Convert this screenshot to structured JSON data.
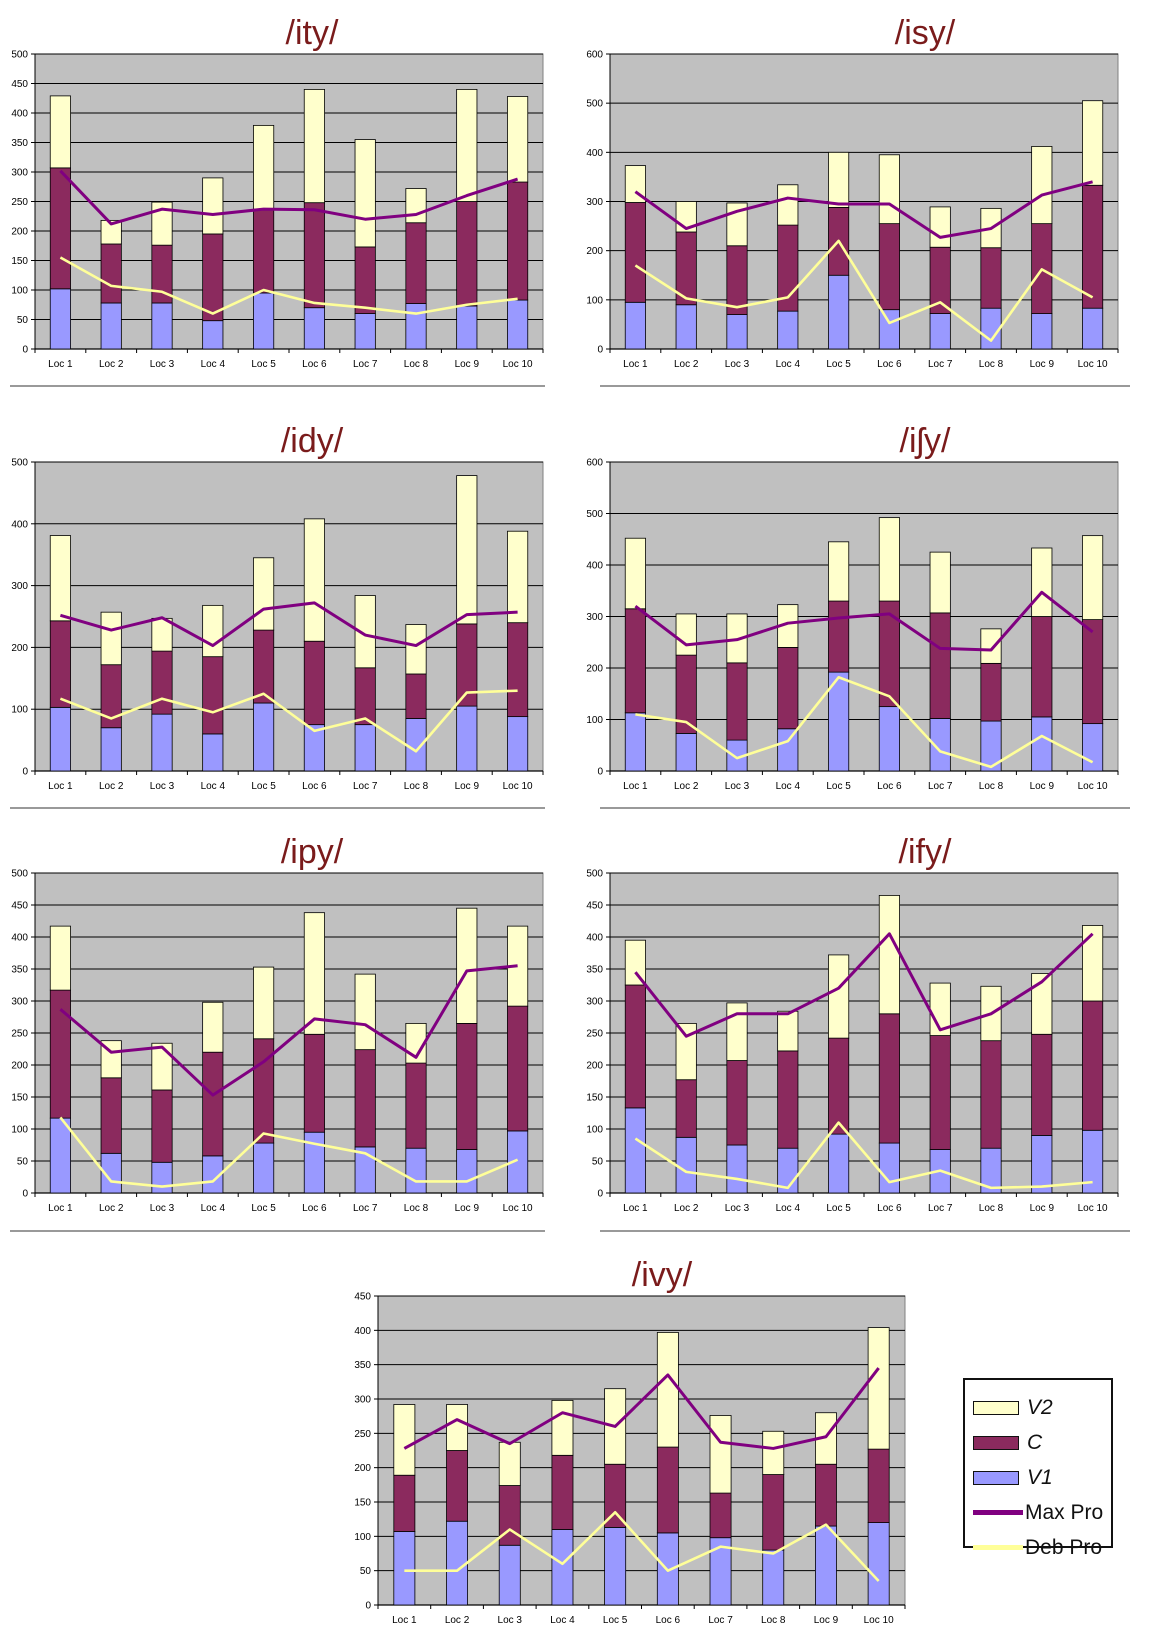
{
  "legend": {
    "v2": "V2",
    "c": "C",
    "v1": "V1",
    "max": "Max Pro",
    "deb": "Deb Pro"
  },
  "colors": {
    "v2": "#ffffcc",
    "c": "#8b2a5e",
    "v1": "#9999ff",
    "max": "#800080",
    "deb": "#ffff99",
    "plot_bg": "#c0c0c0",
    "title": "#7a1b1b"
  },
  "chart_data": [
    {
      "type": "bar",
      "stacked": true,
      "title": "/ity/",
      "categories": [
        "Loc 1",
        "Loc 2",
        "Loc 3",
        "Loc 4",
        "Loc 5",
        "Loc 6",
        "Loc 7",
        "Loc 8",
        "Loc 9",
        "Loc 10"
      ],
      "ylim": [
        0,
        500
      ],
      "yticks": [
        0,
        50,
        100,
        150,
        200,
        250,
        300,
        350,
        400,
        450,
        500
      ],
      "series": [
        {
          "name": "V1",
          "values": [
            102,
            78,
            78,
            48,
            95,
            70,
            60,
            77,
            73,
            83
          ]
        },
        {
          "name": "C",
          "values": [
            205,
            100,
            98,
            147,
            142,
            178,
            113,
            137,
            177,
            200
          ]
        },
        {
          "name": "V2",
          "values": [
            122,
            40,
            73,
            95,
            142,
            192,
            182,
            58,
            190,
            145
          ]
        }
      ],
      "lines": [
        {
          "name": "Max Pro",
          "values": [
            302,
            212,
            237,
            228,
            237,
            236,
            220,
            228,
            260,
            288
          ]
        },
        {
          "name": "Deb Pro",
          "values": [
            155,
            107,
            97,
            60,
            100,
            78,
            70,
            60,
            75,
            85
          ]
        }
      ]
    },
    {
      "type": "bar",
      "stacked": true,
      "title": "/isy/",
      "categories": [
        "Loc 1",
        "Loc 2",
        "Loc 3",
        "Loc 4",
        "Loc 5",
        "Loc 6",
        "Loc 7",
        "Loc 8",
        "Loc 9",
        "Loc 10"
      ],
      "ylim": [
        0,
        600
      ],
      "yticks": [
        0,
        100,
        200,
        300,
        400,
        500,
        600
      ],
      "series": [
        {
          "name": "V1",
          "values": [
            95,
            90,
            70,
            77,
            150,
            80,
            72,
            83,
            72,
            83
          ]
        },
        {
          "name": "C",
          "values": [
            203,
            148,
            140,
            175,
            138,
            175,
            135,
            123,
            183,
            250
          ]
        },
        {
          "name": "V2",
          "values": [
            75,
            62,
            87,
            82,
            112,
            140,
            82,
            80,
            157,
            172
          ]
        }
      ],
      "lines": [
        {
          "name": "Max Pro",
          "values": [
            320,
            245,
            280,
            307,
            295,
            295,
            227,
            245,
            313,
            340
          ]
        },
        {
          "name": "Deb Pro",
          "values": [
            170,
            103,
            85,
            105,
            220,
            53,
            95,
            17,
            162,
            105
          ]
        }
      ]
    },
    {
      "type": "bar",
      "stacked": true,
      "title": "/idy/",
      "categories": [
        "Loc 1",
        "Loc 2",
        "Loc 3",
        "Loc 4",
        "Loc 5",
        "Loc 6",
        "Loc 7",
        "Loc 8",
        "Loc 9",
        "Loc 10"
      ],
      "ylim": [
        0,
        500
      ],
      "yticks": [
        0,
        100,
        200,
        300,
        400,
        500
      ],
      "series": [
        {
          "name": "V1",
          "values": [
            103,
            70,
            92,
            60,
            110,
            75,
            75,
            85,
            105,
            88
          ]
        },
        {
          "name": "C",
          "values": [
            140,
            102,
            102,
            125,
            118,
            135,
            92,
            72,
            133,
            152
          ]
        },
        {
          "name": "V2",
          "values": [
            138,
            85,
            53,
            83,
            117,
            198,
            117,
            80,
            240,
            148
          ]
        }
      ],
      "lines": [
        {
          "name": "Max Pro",
          "values": [
            252,
            228,
            248,
            203,
            262,
            272,
            220,
            203,
            253,
            257
          ]
        },
        {
          "name": "Deb Pro",
          "values": [
            117,
            85,
            117,
            95,
            125,
            65,
            85,
            32,
            127,
            130
          ]
        }
      ]
    },
    {
      "type": "bar",
      "stacked": true,
      "title": "/iʃy/",
      "categories": [
        "Loc 1",
        "Loc 2",
        "Loc 3",
        "Loc 4",
        "Loc 5",
        "Loc 6",
        "Loc 7",
        "Loc 8",
        "Loc 9",
        "Loc 10"
      ],
      "ylim": [
        0,
        600
      ],
      "yticks": [
        0,
        100,
        200,
        300,
        400,
        500,
        600
      ],
      "series": [
        {
          "name": "V1",
          "values": [
            113,
            73,
            60,
            82,
            192,
            125,
            102,
            97,
            105,
            92
          ]
        },
        {
          "name": "C",
          "values": [
            202,
            152,
            150,
            158,
            138,
            205,
            205,
            112,
            195,
            202
          ]
        },
        {
          "name": "V2",
          "values": [
            137,
            80,
            95,
            83,
            115,
            162,
            118,
            67,
            133,
            163
          ]
        }
      ],
      "lines": [
        {
          "name": "Max Pro",
          "values": [
            320,
            245,
            255,
            287,
            297,
            305,
            238,
            235,
            347,
            270
          ]
        },
        {
          "name": "Deb Pro",
          "values": [
            110,
            95,
            25,
            58,
            182,
            145,
            38,
            8,
            68,
            17
          ]
        }
      ]
    },
    {
      "type": "bar",
      "stacked": true,
      "title": "/ipy/",
      "categories": [
        "Loc 1",
        "Loc 2",
        "Loc 3",
        "Loc 4",
        "Loc 5",
        "Loc 6",
        "Loc 7",
        "Loc 8",
        "Loc 9",
        "Loc 10"
      ],
      "ylim": [
        0,
        500
      ],
      "yticks": [
        0,
        50,
        100,
        150,
        200,
        250,
        300,
        350,
        400,
        450,
        500
      ],
      "series": [
        {
          "name": "V1",
          "values": [
            117,
            62,
            48,
            58,
            78,
            95,
            72,
            70,
            68,
            97
          ]
        },
        {
          "name": "C",
          "values": [
            200,
            118,
            113,
            162,
            163,
            153,
            152,
            133,
            197,
            195
          ]
        },
        {
          "name": "V2",
          "values": [
            100,
            58,
            73,
            78,
            112,
            190,
            118,
            62,
            180,
            125
          ]
        }
      ],
      "lines": [
        {
          "name": "Max Pro",
          "values": [
            287,
            220,
            228,
            153,
            205,
            272,
            263,
            212,
            347,
            355
          ]
        },
        {
          "name": "Deb Pro",
          "values": [
            118,
            18,
            10,
            18,
            93,
            77,
            62,
            18,
            18,
            52
          ]
        }
      ]
    },
    {
      "type": "bar",
      "stacked": true,
      "title": "/ify/",
      "categories": [
        "Loc 1",
        "Loc 2",
        "Loc 3",
        "Loc 4",
        "Loc 5",
        "Loc 6",
        "Loc 7",
        "Loc 8",
        "Loc 9",
        "Loc 10"
      ],
      "ylim": [
        0,
        500
      ],
      "yticks": [
        0,
        50,
        100,
        150,
        200,
        250,
        300,
        350,
        400,
        450,
        500
      ],
      "series": [
        {
          "name": "V1",
          "values": [
            133,
            87,
            75,
            70,
            92,
            78,
            68,
            70,
            90,
            98
          ]
        },
        {
          "name": "C",
          "values": [
            192,
            90,
            132,
            152,
            150,
            202,
            178,
            168,
            158,
            202
          ]
        },
        {
          "name": "V2",
          "values": [
            70,
            88,
            90,
            62,
            130,
            185,
            82,
            85,
            95,
            118
          ]
        }
      ],
      "lines": [
        {
          "name": "Max Pro",
          "values": [
            345,
            245,
            280,
            280,
            320,
            405,
            255,
            280,
            330,
            405
          ]
        },
        {
          "name": "Deb Pro",
          "values": [
            85,
            33,
            22,
            8,
            110,
            17,
            35,
            8,
            10,
            17
          ]
        }
      ]
    },
    {
      "type": "bar",
      "stacked": true,
      "title": "/ivy/",
      "categories": [
        "Loc 1",
        "Loc 2",
        "Loc 3",
        "Loc 4",
        "Loc 5",
        "Loc 6",
        "Loc 7",
        "Loc 8",
        "Loc 9",
        "Loc 10"
      ],
      "ylim": [
        0,
        450
      ],
      "yticks": [
        0,
        50,
        100,
        150,
        200,
        250,
        300,
        350,
        400,
        450
      ],
      "series": [
        {
          "name": "V1",
          "values": [
            107,
            122,
            87,
            110,
            113,
            105,
            98,
            80,
            115,
            120
          ]
        },
        {
          "name": "C",
          "values": [
            82,
            103,
            87,
            108,
            92,
            125,
            65,
            110,
            90,
            107
          ]
        },
        {
          "name": "V2",
          "values": [
            103,
            67,
            63,
            80,
            110,
            167,
            113,
            63,
            75,
            177
          ]
        }
      ],
      "lines": [
        {
          "name": "Max Pro",
          "values": [
            228,
            270,
            235,
            280,
            260,
            335,
            237,
            228,
            245,
            345
          ]
        },
        {
          "name": "Deb Pro",
          "values": [
            50,
            50,
            110,
            60,
            135,
            50,
            85,
            75,
            117,
            35
          ]
        }
      ]
    }
  ]
}
